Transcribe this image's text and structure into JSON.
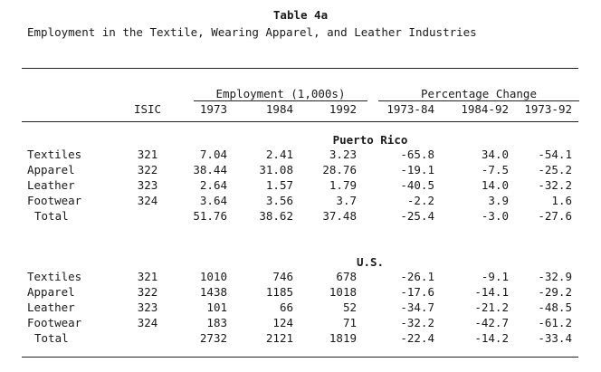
{
  "title": "Table 4a",
  "subtitle": "Employment in the Textile, Wearing Apparel, and Leather Industries",
  "headers": {
    "employment_group": "Employment (1,000s)",
    "percentage_group": "Percentage Change",
    "isic": "ISIC",
    "cols": [
      "1973",
      "1984",
      "1992",
      "1973-84",
      "1984-92",
      "1973-92"
    ]
  },
  "sections": [
    {
      "name": "Puerto Rico",
      "rows": [
        {
          "label": "Textiles",
          "isic": "321",
          "values": [
            "7.04",
            "2.41",
            "3.23",
            "-65.8",
            "34.0",
            "-54.1"
          ]
        },
        {
          "label": "Apparel",
          "isic": "322",
          "values": [
            "38.44",
            "31.08",
            "28.76",
            "-19.1",
            "-7.5",
            "-25.2"
          ]
        },
        {
          "label": "Leather",
          "isic": "323",
          "values": [
            "2.64",
            "1.57",
            "1.79",
            "-40.5",
            "14.0",
            "-32.2"
          ]
        },
        {
          "label": "Footwear",
          "isic": "324",
          "values": [
            "3.64",
            "3.56",
            "3.7",
            "-2.2",
            "3.9",
            "1.6"
          ]
        },
        {
          "label": "Total",
          "isic": "",
          "values": [
            "51.76",
            "38.62",
            "37.48",
            "-25.4",
            "-3.0",
            "-27.6"
          ]
        }
      ]
    },
    {
      "name": "U.S.",
      "rows": [
        {
          "label": "Textiles",
          "isic": "321",
          "values": [
            "1010",
            "746",
            "678",
            "-26.1",
            "-9.1",
            "-32.9"
          ]
        },
        {
          "label": "Apparel",
          "isic": "322",
          "values": [
            "1438",
            "1185",
            "1018",
            "-17.6",
            "-14.1",
            "-29.2"
          ]
        },
        {
          "label": "Leather",
          "isic": "323",
          "values": [
            "101",
            "66",
            "52",
            "-34.7",
            "-21.2",
            "-48.5"
          ]
        },
        {
          "label": "Footwear",
          "isic": "324",
          "values": [
            "183",
            "124",
            "71",
            "-32.2",
            "-42.7",
            "-61.2"
          ]
        },
        {
          "label": "Total",
          "isic": "",
          "values": [
            "2732",
            "2121",
            "1819",
            "-22.4",
            "-14.2",
            "-33.4"
          ]
        }
      ]
    }
  ]
}
